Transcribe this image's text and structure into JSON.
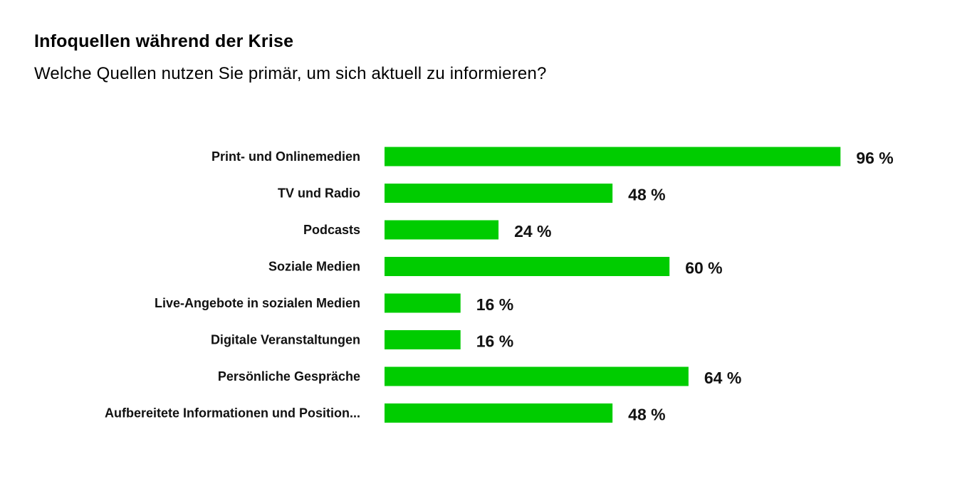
{
  "chart_data": {
    "type": "bar",
    "orientation": "horizontal",
    "title": "Infoquellen während der Krise",
    "subtitle": "Welche Quellen nutzen Sie primär, um sich aktuell zu informieren?",
    "categories": [
      "Print- und Onlinemedien",
      "TV und Radio",
      "Podcasts",
      "Soziale Medien",
      "Live-Angebote in sozialen Medien",
      "Digitale Veranstaltungen",
      "Persönliche Gespräche",
      "Aufbereitete Informationen und Position..."
    ],
    "values": [
      96,
      48,
      24,
      60,
      16,
      16,
      64,
      48
    ],
    "value_labels": [
      "96 %",
      "48 %",
      "24 %",
      "60 %",
      "16 %",
      "16 %",
      "64 %",
      "48 %"
    ],
    "unit": "%",
    "xlim": [
      0,
      100
    ],
    "grid": false,
    "legend": "none",
    "bar_color": "#00cc00"
  }
}
